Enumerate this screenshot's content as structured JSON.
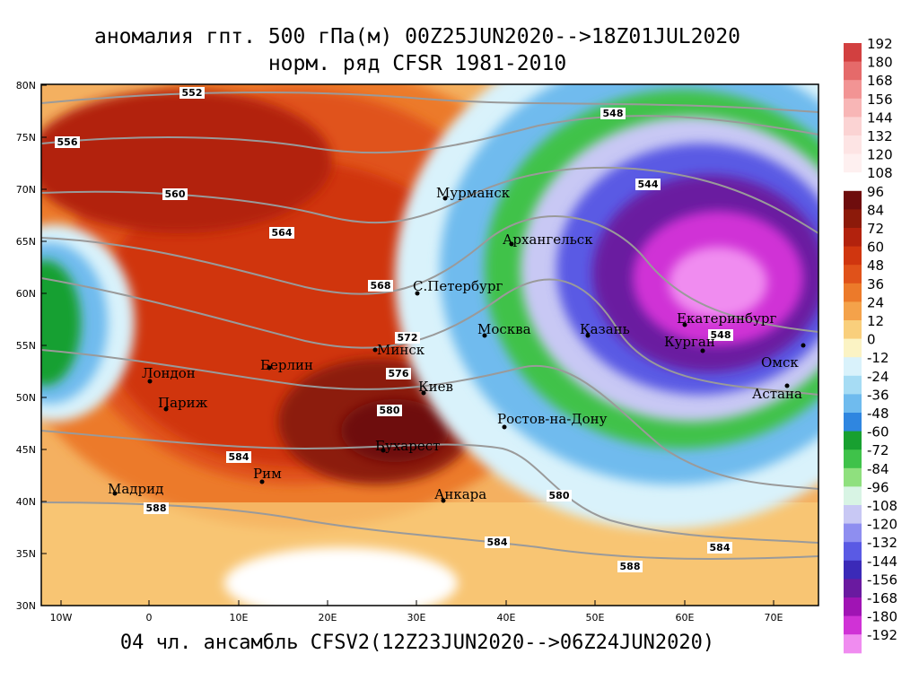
{
  "title": {
    "line1": "аномалия гпт. 500 гПа(м) 00Z25JUN2020-->18Z01JUL2020",
    "line2": "норм. ряд CFSR 1981-2010"
  },
  "footer": "04 чл. ансамбль CFSV2(12Z23JUN2020-->06Z24JUN2020)",
  "axes": {
    "lat_labels": [
      "80N",
      "75N",
      "70N",
      "65N",
      "60N",
      "55N",
      "50N",
      "45N",
      "40N",
      "35N",
      "30N"
    ],
    "lon_labels": [
      "10W",
      "0",
      "10E",
      "20E",
      "30E",
      "40E",
      "50E",
      "60E",
      "70E"
    ]
  },
  "contour_labels": [
    "552",
    "556",
    "560",
    "564",
    "568",
    "572",
    "576",
    "580",
    "584",
    "588",
    "548",
    "544",
    "548",
    "580",
    "584",
    "588",
    "584"
  ],
  "cities": [
    "Мурманск",
    "Архангельск",
    "С.Петербург",
    "Москва",
    "Казань",
    "Екатеринбург",
    "Курган",
    "Омск",
    "Астана",
    "Минск",
    "Киев",
    "Ростов-на-Дону",
    "Бухарест",
    "Анкара",
    "Рим",
    "Мадрид",
    "Париж",
    "Лондон",
    "Берлин"
  ],
  "colorbar": {
    "labels": [
      "192",
      "180",
      "168",
      "156",
      "144",
      "132",
      "120",
      "108",
      "96",
      "84",
      "72",
      "60",
      "48",
      "36",
      "24",
      "12",
      "0",
      "-12",
      "-24",
      "-36",
      "-48",
      "-60",
      "-72",
      "-84",
      "-96",
      "-108",
      "-120",
      "-132",
      "-144",
      "-156",
      "-168",
      "-180",
      "-192"
    ],
    "colors": [
      "#d24040",
      "#e56a6a",
      "#f29494",
      "#f8b6b6",
      "#fbd3d3",
      "#fde4e4",
      "#fef0f0",
      "#ffffff",
      "#6e0d0d",
      "#8c1a0a",
      "#b2220d",
      "#d0360f",
      "#e0521a",
      "#ec7a2a",
      "#f4a24a",
      "#f9cf7c",
      "#fbf3c4",
      "#d9f2fb",
      "#a6dcf4",
      "#6fbbee",
      "#2f86e0",
      "#18a030",
      "#3fc24a",
      "#8fe07e",
      "#d8f4e4",
      "#c8c8f4",
      "#8e8ef0",
      "#5a5ae4",
      "#3b2ab8",
      "#6a1aa0",
      "#a014b4",
      "#d032d6",
      "#f08cf0"
    ]
  }
}
